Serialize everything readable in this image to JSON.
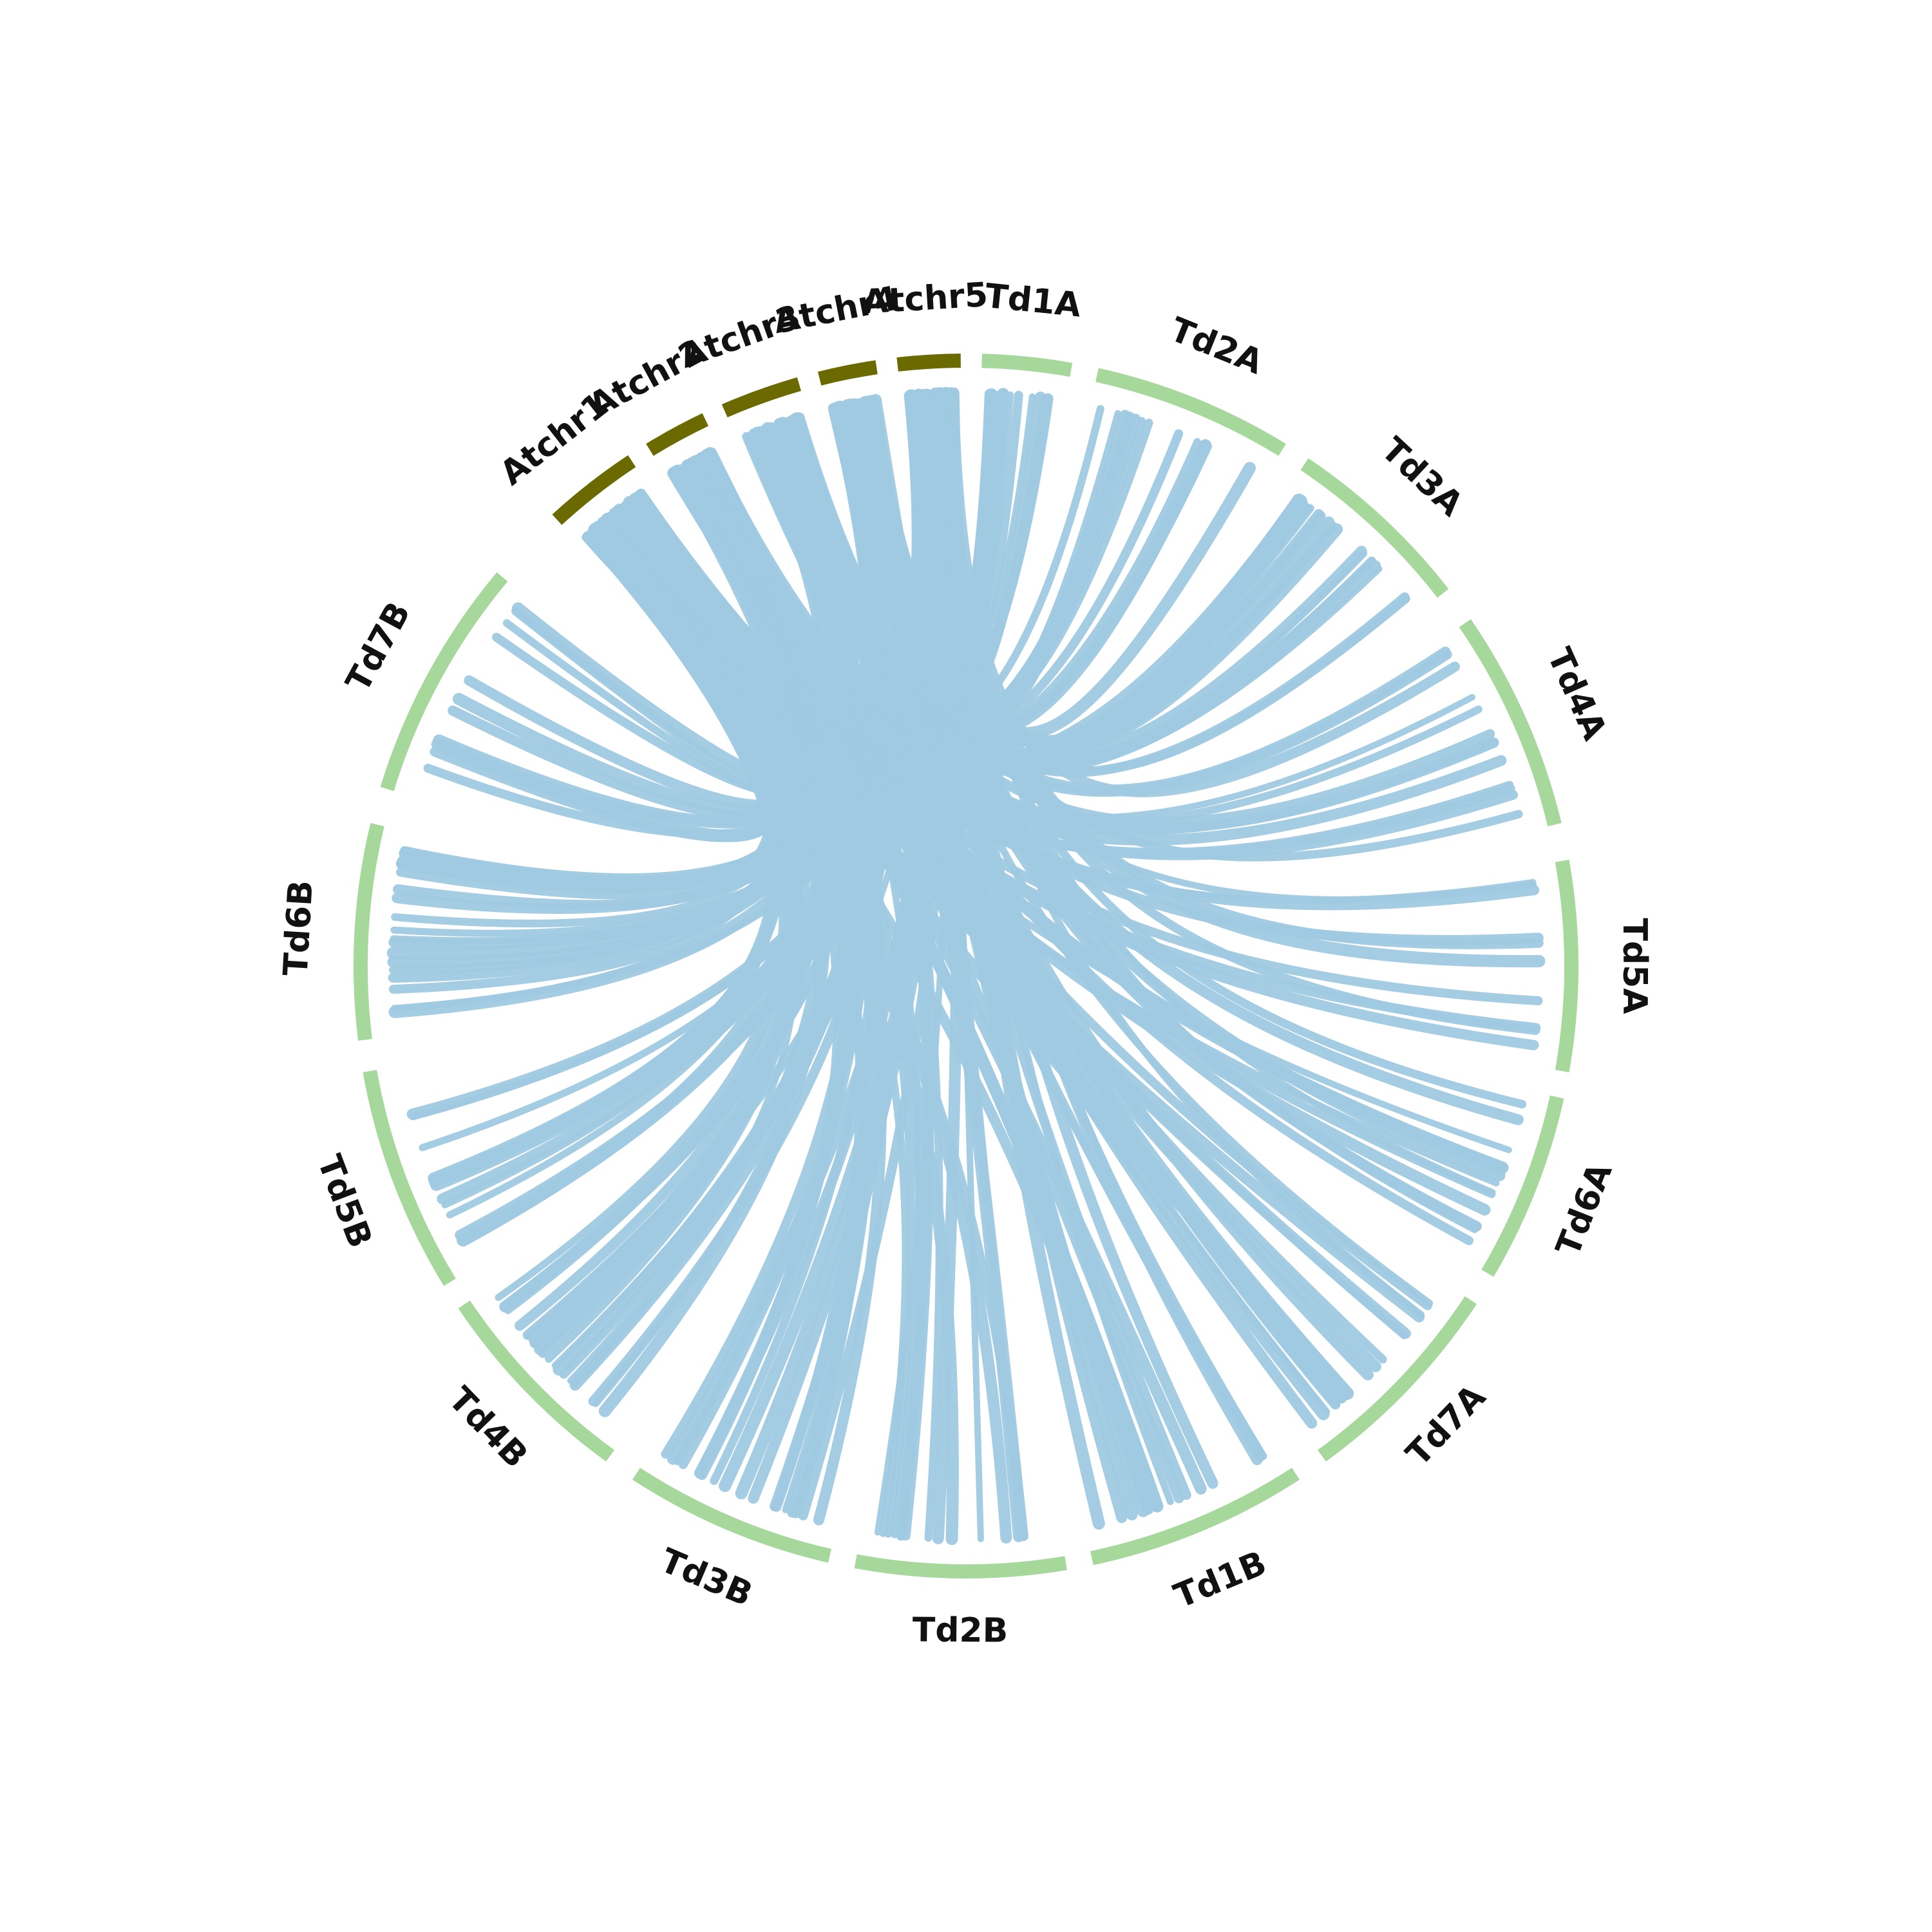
{
  "colors": {
    "background": "#ffffff",
    "arabidopsis_segment": "#6b6a00",
    "wheat_segment": "#a6d89b",
    "link": "#9fc9e0"
  },
  "segments": [
    {
      "id": "Atchr1",
      "label": "Atchr1",
      "group": "arabidopsis"
    },
    {
      "id": "Atchr2",
      "label": "Atchr2",
      "group": "arabidopsis"
    },
    {
      "id": "Atchr3",
      "label": "Atchr3",
      "group": "arabidopsis"
    },
    {
      "id": "Atchr4",
      "label": "Atchr4",
      "group": "arabidopsis"
    },
    {
      "id": "Atchr5",
      "label": "Atchr5",
      "group": "arabidopsis"
    },
    {
      "id": "Td1A",
      "label": "Td1A",
      "group": "wheat"
    },
    {
      "id": "Td2A",
      "label": "Td2A",
      "group": "wheat"
    },
    {
      "id": "Td3A",
      "label": "Td3A",
      "group": "wheat"
    },
    {
      "id": "Td4A",
      "label": "Td4A",
      "group": "wheat"
    },
    {
      "id": "Td5A",
      "label": "Td5A",
      "group": "wheat"
    },
    {
      "id": "Td6A",
      "label": "Td6A",
      "group": "wheat"
    },
    {
      "id": "Td7A",
      "label": "Td7A",
      "group": "wheat"
    },
    {
      "id": "Td1B",
      "label": "Td1B",
      "group": "wheat"
    },
    {
      "id": "Td2B",
      "label": "Td2B",
      "group": "wheat"
    },
    {
      "id": "Td3B",
      "label": "Td3B",
      "group": "wheat"
    },
    {
      "id": "Td4B",
      "label": "Td4B",
      "group": "wheat"
    },
    {
      "id": "Td5B",
      "label": "Td5B",
      "group": "wheat"
    },
    {
      "id": "Td6B",
      "label": "Td6B",
      "group": "wheat"
    },
    {
      "id": "Td7B",
      "label": "Td7B",
      "group": "wheat"
    }
  ]
}
